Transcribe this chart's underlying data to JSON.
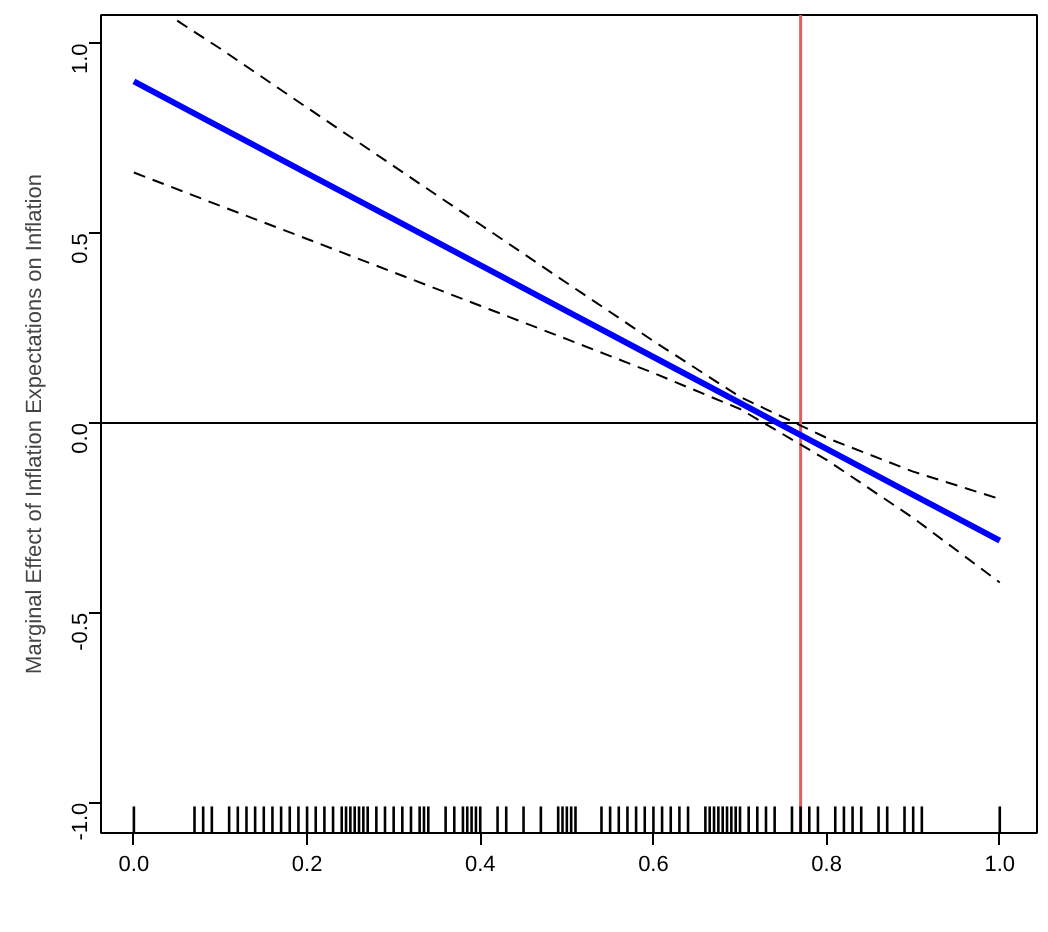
{
  "chart_data": {
    "type": "line",
    "ylabel": "Marginal Effect of Inflation Expectations on Inflation",
    "xlim": [
      -0.038,
      1.043
    ],
    "ylim": [
      -1.08,
      1.075
    ],
    "xticks": [
      {
        "value": 0,
        "label": "0.0"
      },
      0.2,
      0.4,
      0.6,
      0.8,
      {
        "value": 1,
        "label": "1.0"
      }
    ],
    "yticks": [
      {
        "value": -1,
        "label": "-1.0"
      },
      -0.5,
      {
        "value": 0,
        "label": "0.0"
      },
      0.5,
      {
        "value": 1,
        "label": "1.0"
      }
    ],
    "grid": false,
    "series": [
      {
        "color": "#0000ff",
        "line_style": "solid",
        "x": [
          0,
          0.1,
          0.2,
          0.3,
          0.4,
          0.5,
          0.6,
          0.7,
          0.8,
          0.9,
          1.0
        ],
        "values": [
          0.9,
          0.779,
          0.658,
          0.537,
          0.416,
          0.295,
          0.174,
          0.053,
          -0.068,
          -0.189,
          -0.31
        ]
      },
      {
        "color": "#000000",
        "line_style": "dashed",
        "x": [
          0.05,
          0.1,
          0.2,
          0.3,
          0.4,
          0.5,
          0.6,
          0.7,
          0.8,
          0.9,
          1.0
        ],
        "values": [
          1.06,
          0.986,
          0.831,
          0.677,
          0.523,
          0.369,
          0.216,
          0.069,
          -0.039,
          -0.128,
          -0.2
        ]
      },
      {
        "color": "#000000",
        "line_style": "dashed",
        "x": [
          0,
          0.1,
          0.2,
          0.3,
          0.4,
          0.5,
          0.6,
          0.7,
          0.8,
          0.9,
          1.0
        ],
        "values": [
          0.66,
          0.572,
          0.485,
          0.397,
          0.309,
          0.221,
          0.132,
          0.037,
          -0.097,
          -0.25,
          -0.42
        ]
      },
      {
        "type": "bar",
        "color": "#000000",
        "base": [
          -1.08,
          -1.08,
          -1.08,
          -1.08,
          -1.08,
          -1.08,
          -1.08,
          -1.08,
          -1.08,
          -1.08,
          -1.08,
          -1.08,
          -1.08,
          -1.08,
          -1.08,
          -1.08,
          -1.08,
          -1.08,
          -1.08,
          -1.08,
          -1.08,
          -1.08,
          -1.08,
          -1.08,
          -1.08,
          -1.08,
          -1.08,
          -1.08,
          -1.08,
          -1.08,
          -1.08,
          -1.08,
          -1.08,
          -1.08,
          -1.08,
          -1.08,
          -1.08,
          -1.08,
          -1.08,
          -1.08,
          -1.08,
          -1.08,
          -1.08,
          -1.08,
          -1.08,
          -1.08,
          -1.08,
          -1.08,
          -1.08,
          -1.08,
          -1.08,
          -1.08,
          -1.08,
          -1.08,
          -1.08,
          -1.08,
          -1.08,
          -1.08,
          -1.08,
          -1.08,
          -1.08,
          -1.08,
          -1.08,
          -1.08,
          -1.08,
          -1.08,
          -1.08,
          -1.08,
          -1.08,
          -1.08,
          -1.08,
          -1.08,
          -1.08,
          -1.08,
          -1.08,
          -1.08,
          -1.08,
          -1.08,
          -1.08,
          -1.08,
          -1.08,
          -1.08,
          -1.08,
          -1.08,
          -1.08,
          -1.08
        ],
        "x": [
          0,
          0.07,
          0.08,
          0.09,
          0.11,
          0.12,
          0.13,
          0.14,
          0.15,
          0.16,
          0.17,
          0.18,
          0.19,
          0.2,
          0.21,
          0.22,
          0.23,
          0.24,
          0.245,
          0.25,
          0.255,
          0.26,
          0.265,
          0.27,
          0.28,
          0.29,
          0.3,
          0.31,
          0.32,
          0.33,
          0.335,
          0.34,
          0.36,
          0.37,
          0.38,
          0.385,
          0.39,
          0.395,
          0.4,
          0.42,
          0.43,
          0.45,
          0.47,
          0.49,
          0.495,
          0.5,
          0.505,
          0.51,
          0.54,
          0.55,
          0.56,
          0.57,
          0.58,
          0.59,
          0.6,
          0.61,
          0.62,
          0.63,
          0.64,
          0.66,
          0.665,
          0.67,
          0.675,
          0.68,
          0.685,
          0.69,
          0.695,
          0.7,
          0.71,
          0.72,
          0.73,
          0.74,
          0.76,
          0.77,
          0.78,
          0.79,
          0.81,
          0.82,
          0.83,
          0.84,
          0.86,
          0.87,
          0.89,
          0.9,
          0.91,
          1.0
        ],
        "values": [
          0.07,
          0.07,
          0.07,
          0.07,
          0.07,
          0.07,
          0.07,
          0.07,
          0.07,
          0.07,
          0.07,
          0.07,
          0.07,
          0.07,
          0.07,
          0.07,
          0.07,
          0.07,
          0.07,
          0.07,
          0.07,
          0.07,
          0.07,
          0.07,
          0.07,
          0.07,
          0.07,
          0.07,
          0.07,
          0.07,
          0.07,
          0.07,
          0.07,
          0.07,
          0.07,
          0.07,
          0.07,
          0.07,
          0.07,
          0.07,
          0.07,
          0.07,
          0.07,
          0.07,
          0.07,
          0.07,
          0.07,
          0.07,
          0.07,
          0.07,
          0.07,
          0.07,
          0.07,
          0.07,
          0.07,
          0.07,
          0.07,
          0.07,
          0.07,
          0.07,
          0.07,
          0.07,
          0.07,
          0.07,
          0.07,
          0.07,
          0.07,
          0.07,
          0.07,
          0.07,
          0.07,
          0.07,
          0.07,
          0.07,
          0.07,
          0.07,
          0.07,
          0.07,
          0.07,
          0.07,
          0.07,
          0.07,
          0.07,
          0.07,
          0.07,
          0.07
        ]
      }
    ],
    "ref_lines": [
      {
        "axis": "y",
        "value": 0,
        "color": "#000000"
      },
      {
        "axis": "x",
        "value": 0.77,
        "color": "#e06060"
      }
    ]
  }
}
